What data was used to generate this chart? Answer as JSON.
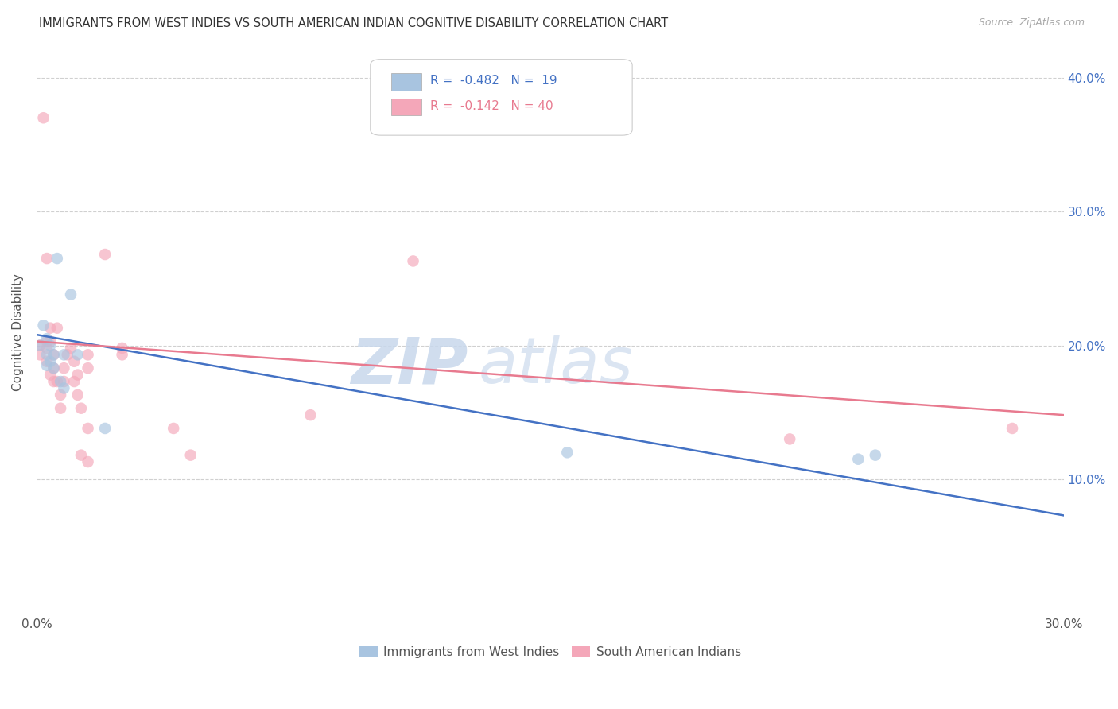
{
  "title": "IMMIGRANTS FROM WEST INDIES VS SOUTH AMERICAN INDIAN COGNITIVE DISABILITY CORRELATION CHART",
  "source": "Source: ZipAtlas.com",
  "ylabel": "Cognitive Disability",
  "x_min": 0.0,
  "x_max": 0.3,
  "y_min": 0.0,
  "y_max": 0.42,
  "legend_r1": "-0.482",
  "legend_n1": "19",
  "legend_r2": "-0.142",
  "legend_n2": "40",
  "color_blue": "#a8c4e0",
  "color_pink": "#f4a7b9",
  "line_color_blue": "#4472c4",
  "line_color_pink": "#e87a8f",
  "watermark_zip": "ZIP",
  "watermark_atlas": "atlas",
  "blue_points": [
    [
      0.001,
      0.2
    ],
    [
      0.002,
      0.215
    ],
    [
      0.003,
      0.205
    ],
    [
      0.003,
      0.185
    ],
    [
      0.003,
      0.193
    ],
    [
      0.004,
      0.2
    ],
    [
      0.004,
      0.188
    ],
    [
      0.005,
      0.193
    ],
    [
      0.005,
      0.183
    ],
    [
      0.006,
      0.265
    ],
    [
      0.007,
      0.173
    ],
    [
      0.008,
      0.168
    ],
    [
      0.008,
      0.193
    ],
    [
      0.01,
      0.238
    ],
    [
      0.012,
      0.193
    ],
    [
      0.02,
      0.138
    ],
    [
      0.155,
      0.12
    ],
    [
      0.24,
      0.115
    ],
    [
      0.245,
      0.118
    ]
  ],
  "pink_points": [
    [
      0.001,
      0.2
    ],
    [
      0.001,
      0.193
    ],
    [
      0.002,
      0.37
    ],
    [
      0.003,
      0.265
    ],
    [
      0.003,
      0.203
    ],
    [
      0.003,
      0.198
    ],
    [
      0.003,
      0.188
    ],
    [
      0.004,
      0.213
    ],
    [
      0.004,
      0.203
    ],
    [
      0.004,
      0.178
    ],
    [
      0.005,
      0.193
    ],
    [
      0.005,
      0.183
    ],
    [
      0.005,
      0.173
    ],
    [
      0.006,
      0.213
    ],
    [
      0.006,
      0.173
    ],
    [
      0.007,
      0.163
    ],
    [
      0.007,
      0.153
    ],
    [
      0.008,
      0.183
    ],
    [
      0.008,
      0.173
    ],
    [
      0.009,
      0.193
    ],
    [
      0.01,
      0.198
    ],
    [
      0.011,
      0.188
    ],
    [
      0.011,
      0.173
    ],
    [
      0.012,
      0.178
    ],
    [
      0.012,
      0.163
    ],
    [
      0.013,
      0.153
    ],
    [
      0.013,
      0.118
    ],
    [
      0.015,
      0.193
    ],
    [
      0.015,
      0.183
    ],
    [
      0.015,
      0.138
    ],
    [
      0.015,
      0.113
    ],
    [
      0.02,
      0.268
    ],
    [
      0.025,
      0.198
    ],
    [
      0.025,
      0.193
    ],
    [
      0.04,
      0.138
    ],
    [
      0.045,
      0.118
    ],
    [
      0.08,
      0.148
    ],
    [
      0.11,
      0.263
    ],
    [
      0.22,
      0.13
    ],
    [
      0.285,
      0.138
    ]
  ],
  "blue_line_x": [
    0.0,
    0.3
  ],
  "blue_line_y_start": 0.208,
  "blue_line_y_end": 0.073,
  "pink_line_x": [
    0.0,
    0.3
  ],
  "pink_line_y_start": 0.203,
  "pink_line_y_end": 0.148,
  "marker_size": 110,
  "marker_alpha": 0.65,
  "grid_color": "#d0d0d0",
  "background_color": "#ffffff",
  "legend_label_blue": "Immigrants from West Indies",
  "legend_label_pink": "South American Indians"
}
